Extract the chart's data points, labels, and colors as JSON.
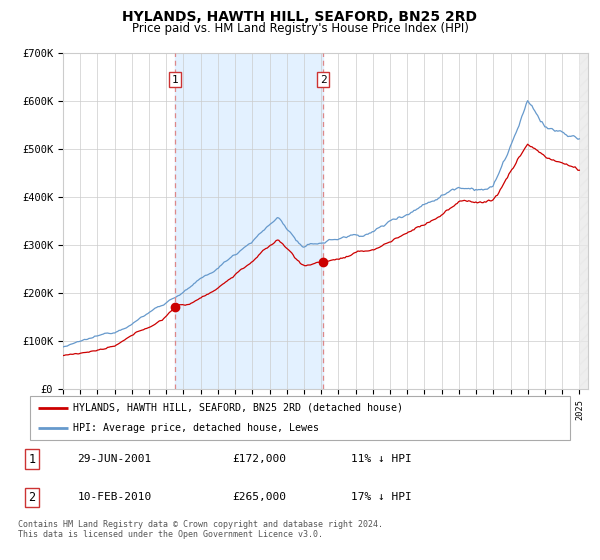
{
  "title": "HYLANDS, HAWTH HILL, SEAFORD, BN25 2RD",
  "subtitle": "Price paid vs. HM Land Registry's House Price Index (HPI)",
  "legend_line1": "HYLANDS, HAWTH HILL, SEAFORD, BN25 2RD (detached house)",
  "legend_line2": "HPI: Average price, detached house, Lewes",
  "annotation1_label": "1",
  "annotation1_date": "29-JUN-2001",
  "annotation1_price": "£172,000",
  "annotation1_hpi": "11% ↓ HPI",
  "annotation2_label": "2",
  "annotation2_date": "10-FEB-2010",
  "annotation2_price": "£265,000",
  "annotation2_hpi": "17% ↓ HPI",
  "footer": "Contains HM Land Registry data © Crown copyright and database right 2024.\nThis data is licensed under the Open Government Licence v3.0.",
  "red_color": "#cc0000",
  "blue_color": "#6699cc",
  "shading_color": "#ddeeff",
  "dashed_color": "#dd8888",
  "background_color": "#ffffff",
  "grid_color": "#cccccc",
  "sale1_year": 2001.5,
  "sale2_year": 2010.12,
  "sale1_price": 172000,
  "sale2_price": 265000,
  "ylim": [
    0,
    700000
  ],
  "yticks": [
    0,
    100000,
    200000,
    300000,
    400000,
    500000,
    600000,
    700000
  ],
  "ytick_labels": [
    "£0",
    "£100K",
    "£200K",
    "£300K",
    "£400K",
    "£500K",
    "£600K",
    "£700K"
  ],
  "xmin": 1995.0,
  "xmax": 2025.5
}
